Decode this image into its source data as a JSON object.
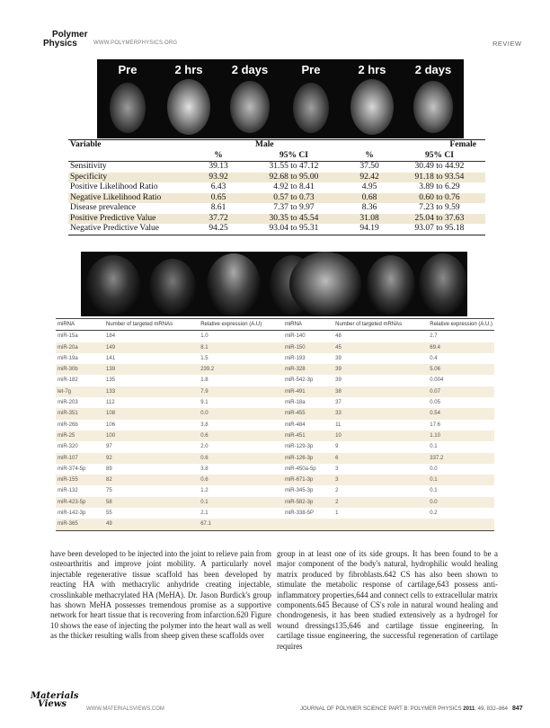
{
  "header": {
    "logo_line1": "Polymer",
    "logo_line2": "Physics",
    "site": "WWW.POLYMERPHYSICS.ORG",
    "section": "REVIEW"
  },
  "figure_top": {
    "labels": [
      "Pre",
      "2 hrs",
      "2 days",
      "Pre",
      "2 hrs",
      "2 days"
    ]
  },
  "table1": {
    "col_variable": "Variable",
    "group_male": "Male",
    "group_female": "Female",
    "sub_pct": "%",
    "sub_ci": "95% CI",
    "rows": [
      {
        "name": "Sensitivity",
        "m_pct": "39.13",
        "m_ci": "31.55 to 47.12",
        "f_pct": "37.50",
        "f_ci": "30.49 to 44.92"
      },
      {
        "name": "Specificity",
        "m_pct": "93.92",
        "m_ci": "92.68 to 95.00",
        "f_pct": "92.42",
        "f_ci": "91.18 to 93.54"
      },
      {
        "name": "Positive Likelihood Ratio",
        "m_pct": "6.43",
        "m_ci": "4.92 to 8.41",
        "f_pct": "4.95",
        "f_ci": "3.89 to 6.29"
      },
      {
        "name": "Negative Likelihood Ratio",
        "m_pct": "0.65",
        "m_ci": "0.57 to 0.73",
        "f_pct": "0.68",
        "f_ci": "0.60 to 0.76"
      },
      {
        "name": "Disease prevalence",
        "m_pct": "8.61",
        "m_ci": "7.37 to 9.97",
        "f_pct": "8.36",
        "f_ci": "7.23 to 9.59"
      },
      {
        "name": "Positive Predictive Value",
        "m_pct": "37.72",
        "m_ci": "30.35 to 45.54",
        "f_pct": "31.08",
        "f_ci": "25.04 to 37.63"
      },
      {
        "name": "Negative Predictive Value",
        "m_pct": "94.25",
        "m_ci": "93.04 to 95.31",
        "f_pct": "94.19",
        "f_ci": "93.07 to 95.18"
      }
    ]
  },
  "table2": {
    "headers": [
      "miRNA",
      "Number of targeted mRNAs",
      "Relative expression (A.U)",
      "miRNA",
      "Number of targeted mRNAs",
      "Relative expression (A.U.)"
    ],
    "rows": [
      [
        "miR-15a",
        "184",
        "1.0",
        "miR-140",
        "48",
        "2.7"
      ],
      [
        "miR-20a",
        "149",
        "8.1",
        "miR-150",
        "45",
        "69.4"
      ],
      [
        "miR-19a",
        "141",
        "1.5",
        "miR-193",
        "39",
        "0.4"
      ],
      [
        "miR-30b",
        "139",
        "239.2",
        "miR-328",
        "39",
        "5.06"
      ],
      [
        "miR-182",
        "135",
        "1.8",
        "miR-542-3p",
        "39",
        "0.004"
      ],
      [
        "let-7g",
        "133",
        "7.9",
        "miR-491",
        "38",
        "0.07"
      ],
      [
        "miR-203",
        "112",
        "9.1",
        "miR-18a",
        "37",
        "0.05"
      ],
      [
        "miR-351",
        "108",
        "0.0",
        "miR-455",
        "33",
        "0.54"
      ],
      [
        "miR-26b",
        "106",
        "3.8",
        "miR-484",
        "11",
        "17.6"
      ],
      [
        "miR-25",
        "100",
        "0.6",
        "miR-451",
        "10",
        "1.10"
      ],
      [
        "miR-320",
        "97",
        "2.0",
        "miR-129-3p",
        "9",
        "0.1"
      ],
      [
        "miR-107",
        "92",
        "0.6",
        "miR-126-3p",
        "6",
        "337.2"
      ],
      [
        "miR-374-5p",
        "89",
        "3.8",
        "miR-450a-5p",
        "3",
        "0.0"
      ],
      [
        "miR-155",
        "82",
        "0.6",
        "miR-671-3p",
        "3",
        "0.1"
      ],
      [
        "miR-132",
        "75",
        "1.2",
        "miR-345-3p",
        "2",
        "0.1"
      ],
      [
        "miR-423-5p",
        "58",
        "0.1",
        "miR-582-3p",
        "2",
        "0.0"
      ],
      [
        "miR-142-3p",
        "55",
        "2.1",
        "miR-338-5P",
        "1",
        "0.2"
      ],
      [
        "miR-365",
        "49",
        "67.1",
        "",
        "",
        ""
      ]
    ]
  },
  "body": {
    "left_col": "have been developed to be injected into the joint to relieve pain from osteoarthritis and improve joint mobility. A particularly novel injectable regenerative tissue scaffold has been developed by reacting HA with methacrylic anhydride creating injectable, crosslinkable methacrylated HA (MeHA). Dr. Jason Burdick's group has shown MeHA possesses tremendous promise as a supportive network for heart tissue that is recovering from infarction.620 Figure 10 shows the ease of injecting the polymer into the heart wall as well as the thicker resulting walls from sheep given these scaffolds over",
    "right_col": "group in at least one of its side groups. It has been found to be a major component of the body's natural, hydrophilic would healing matrix produced by fibroblasts.642 CS has also been shown to stimulate the metabolic response of cartilage,643 possess anti-inflammatory properties,644 and connect cells to extracellular matrix components.645 Because of CS's role in natural wound healing and chondrogenesis, it has been studied extensively as a hydrogel for wound dressings135,646 and cartilage tissue engineering. In cartilage tissue engineering, the successful regeneration of cartilage requires"
  },
  "footer": {
    "logo_line1": "Materials",
    "logo_line2": "Views",
    "site": "WWW.MATERIALSVIEWS.COM",
    "journal": "JOURNAL OF POLYMER SCIENCE PART B: POLYMER PHYSICS",
    "journal_tail": "2011, 49, 832–864",
    "year": "2011",
    "page": "847"
  }
}
